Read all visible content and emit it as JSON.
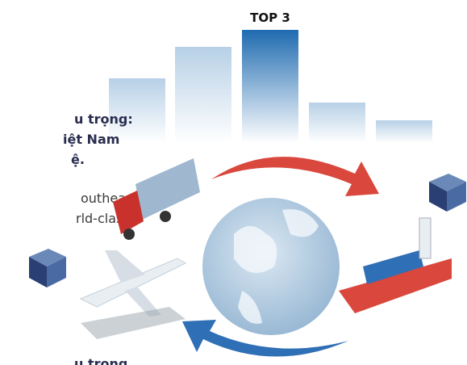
{
  "badge": "TOP 3",
  "heading_lines": [
    "u trọng:",
    "iệt Nam",
    "ệ."
  ],
  "body_lines": [
    "outheast",
    "rld-class"
  ],
  "footer_line": "u trong"
}
